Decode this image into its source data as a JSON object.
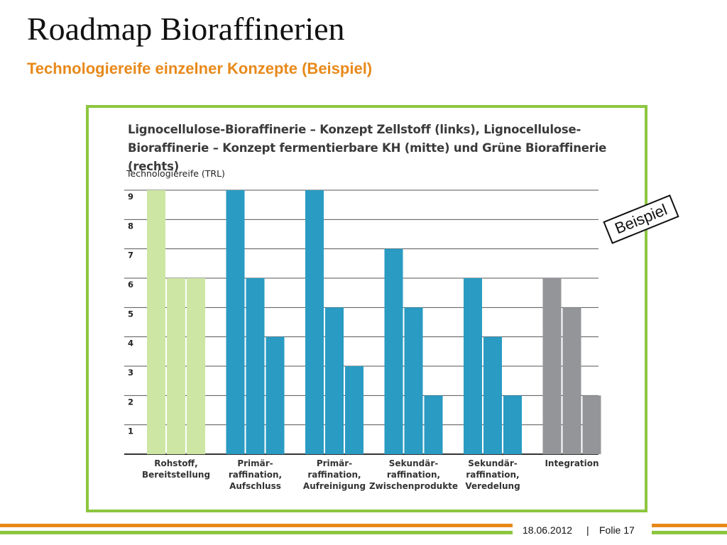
{
  "slide": {
    "title": "Roadmap Bioraffinerien",
    "subtitle": "Technologiereife einzelner Konzepte (Beispiel)",
    "stamp": "Beispiel"
  },
  "footer": {
    "date": "18.06.2012",
    "separator": "|",
    "page": "Folie 17"
  },
  "colors": {
    "frame": "#8cc63f",
    "orange": "#e8891a",
    "green": "#8cc63f",
    "light_green": "#cde6a4",
    "blue": "#2a9bc2",
    "gray": "#939598"
  },
  "chart_data": {
    "type": "bar",
    "title_line1": "Lignocellulose-Bioraffinerie – Konzept Zellstoff (links), Lignocellulose-",
    "title_line2": "Bioraffinerie – Konzept fermentierbare KH (mitte) und Grüne Bioraffinerie (rechts)",
    "ylabel": "Technologiereife (TRL)",
    "ylim": [
      0,
      9
    ],
    "yticks": [
      "1",
      "2",
      "3",
      "4",
      "5",
      "6",
      "7",
      "8",
      "9"
    ],
    "grid": true,
    "categories": [
      "Rohstoff,\nBereitstellung",
      "Primär-\nraffination,\nAufschluss",
      "Primär-\nraffination,\nAufreinigung",
      "Sekundär-\nraffination,\nZwischenprodukte",
      "Sekundär-\nraffination,\nVeredelung",
      "Integration"
    ],
    "series": [
      {
        "values": [
          9,
          9,
          9,
          7,
          6,
          6
        ]
      },
      {
        "values": [
          6,
          6,
          5,
          5,
          4,
          5
        ]
      },
      {
        "values": [
          6,
          4,
          3,
          2,
          2,
          2
        ]
      }
    ],
    "category_colors": [
      "#cde6a4",
      "#2a9bc2",
      "#2a9bc2",
      "#2a9bc2",
      "#2a9bc2",
      "#939598"
    ]
  }
}
